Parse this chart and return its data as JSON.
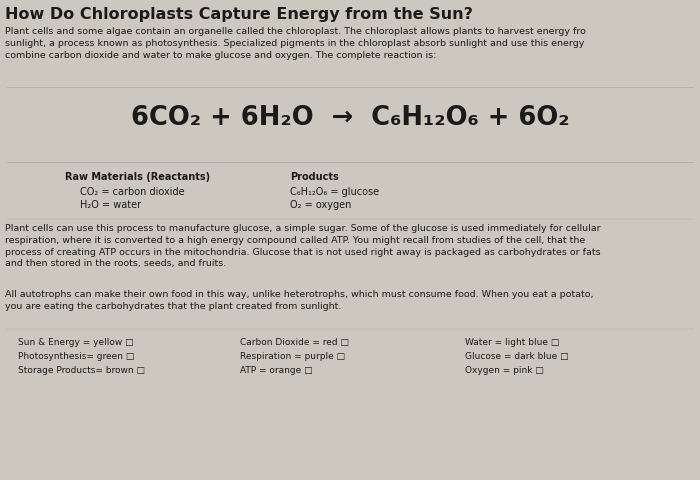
{
  "title": "How Do Chloroplasts Capture Energy from the Sun?",
  "bg_color": "#ccc8c0",
  "text_color": "#1a1a1a",
  "intro_text": "Plant cells and some algae contain an organelle called the chloroplast. The chloroplast allows plants to harvest energy fro\nsunlight, a process known as photosynthesis. Specialized pigments in the chloroplast absorb sunlight and use this energy\ncombine carbon dioxide and water to make glucose and oxygen. The complete reaction is:",
  "equation_left": "6CO₂ + 6H₂O",
  "equation_arrow": "  →",
  "equation_right": "  C₆H₁₂O₆ + 6O₂",
  "raw_materials_title": "Raw Materials (Reactants)",
  "raw_materials": [
    "CO₂ = carbon dioxide",
    "H₂O = water"
  ],
  "products_title": "Products",
  "products": [
    "C₆H₁₂O₆ = glucose",
    "O₂ = oxygen"
  ],
  "body_text1": "Plant cells can use this process to manufacture glucose, a simple sugar. Some of the glucose is used immediately for cellular\nrespiration, where it is converted to a high energy compound called ATP. You might recall from studies of the cell, that the\nprocess of creating ATP occurs in the mitochondria. Glucose that is not used right away is packaged as carbohydrates or fats\nand then stored in the roots, seeds, and fruits.",
  "body_text2": "All autotrophs can make their own food in this way, unlike heterotrophs, which must consume food. When you eat a potato,\nyou are eating the carbohydrates that the plant created from sunlight.",
  "legend_col1": [
    "Sun & Energy = yellow □",
    "Photosynthesis= green □",
    "Storage Products= brown □"
  ],
  "legend_col2": [
    "Carbon Dioxide = red □",
    "Respiration = purple □",
    "ATP = orange □"
  ],
  "legend_col3": [
    "Water = light blue □",
    "Glucose = dark blue □",
    "Oxygen = pink □"
  ],
  "fs_title": 11.5,
  "fs_body": 7.0,
  "fs_small": 6.8,
  "fs_eq": 18.5,
  "fs_legend": 6.5
}
